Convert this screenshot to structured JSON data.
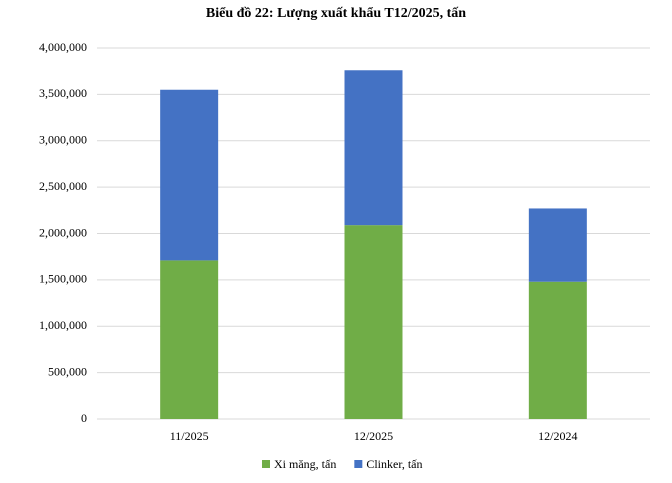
{
  "chart_data": {
    "type": "stacked_bar",
    "title": "Biểu đồ 22: Lượng xuất khẩu T12/2025, tấn",
    "categories": [
      "11/2025",
      "12/2025",
      "12/2024"
    ],
    "series": [
      {
        "name": "Xi măng, tấn",
        "color": "#70ad47",
        "values": [
          1710000,
          2090000,
          1480000
        ]
      },
      {
        "name": "Clinker, tấn",
        "color": "#4472c4",
        "values": [
          1840000,
          1670000,
          790000
        ]
      }
    ],
    "ylim": [
      0,
      4000000
    ],
    "yticks": [
      0,
      {
        "value": 500000,
        "label": "500,000"
      },
      {
        "value": 1000000,
        "label": "1,000,000"
      },
      {
        "value": 1500000,
        "label": "1,500,000"
      },
      {
        "value": 2000000,
        "label": "2,000,000"
      },
      {
        "value": 2500000,
        "label": "2,500,000"
      },
      {
        "value": 3000000,
        "label": "3,000,000"
      },
      {
        "value": 3500000,
        "label": "3,500,000"
      },
      {
        "value": 4000000,
        "label": "4,000,000"
      }
    ],
    "grid": true,
    "legend": "bottom"
  }
}
